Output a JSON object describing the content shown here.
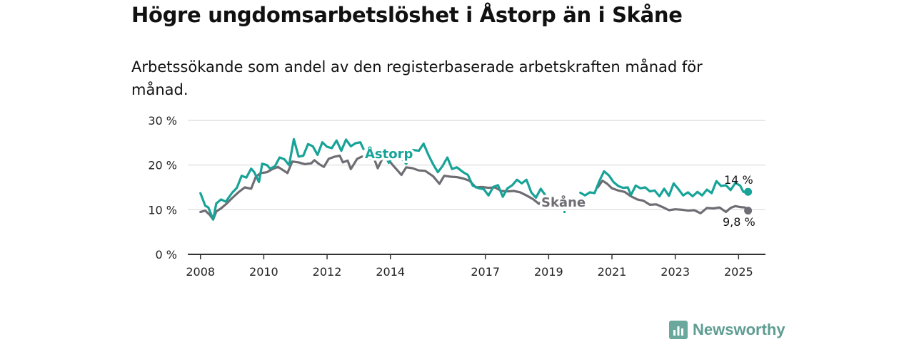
{
  "title": "Högre ungdomsarbetslöshet i Åstorp än i Skåne",
  "subtitle": "Arbetssökande som andel av den registerbaserade arbetskraften månad för månad.",
  "logo": "Newsworthy",
  "colors": {
    "astorp": "#17a398",
    "skane": "#6f6d73",
    "grid": "#d9d9d9",
    "axis": "#333333"
  },
  "chart_data": {
    "type": "line",
    "ylim": [
      0,
      30
    ],
    "yticks": [
      0,
      10,
      20,
      30
    ],
    "ytick_labels": [
      "0 %",
      "10 %",
      "20 %",
      "30 %"
    ],
    "xlim": [
      2007.6,
      2025.85
    ],
    "xticks": [
      2008,
      2010,
      2012,
      2014,
      2017,
      2019,
      2021,
      2023,
      2025
    ],
    "xtick_labels": [
      "2008",
      "2010",
      "2012",
      "2014",
      "2017",
      "2019",
      "2021",
      "2023",
      "2025"
    ],
    "grid": true,
    "series": [
      {
        "name": "Skåne",
        "color": "#6f6d73",
        "end_label": "9,8 %",
        "points": [
          [
            2008.0,
            9.5
          ],
          [
            2008.15,
            9.8
          ],
          [
            2008.3,
            8.8
          ],
          [
            2008.4,
            7.8
          ],
          [
            2008.5,
            9.6
          ],
          [
            2008.65,
            10.3
          ],
          [
            2008.8,
            11.2
          ],
          [
            2009.0,
            12.6
          ],
          [
            2009.2,
            13.9
          ],
          [
            2009.4,
            15.0
          ],
          [
            2009.6,
            14.7
          ],
          [
            2009.75,
            17.4
          ],
          [
            2009.9,
            18.2
          ],
          [
            2010.1,
            18.4
          ],
          [
            2010.3,
            19.2
          ],
          [
            2010.45,
            19.6
          ],
          [
            2010.6,
            18.9
          ],
          [
            2010.75,
            18.2
          ],
          [
            2010.9,
            20.8
          ],
          [
            2011.1,
            20.6
          ],
          [
            2011.3,
            20.2
          ],
          [
            2011.5,
            20.4
          ],
          [
            2011.6,
            21.1
          ],
          [
            2011.75,
            20.2
          ],
          [
            2011.9,
            19.6
          ],
          [
            2012.05,
            21.4
          ],
          [
            2012.25,
            21.9
          ],
          [
            2012.4,
            22.1
          ],
          [
            2012.5,
            20.6
          ],
          [
            2012.65,
            21.0
          ],
          [
            2012.75,
            19.1
          ],
          [
            2012.95,
            21.4
          ],
          [
            2013.1,
            21.9
          ],
          [
            2013.3,
            21.6
          ],
          [
            2013.5,
            21.2
          ],
          [
            2013.6,
            19.3
          ],
          [
            2013.75,
            21.5
          ],
          [
            2013.9,
            21.6
          ],
          [
            2014.05,
            20.2
          ],
          [
            2014.2,
            19.0
          ],
          [
            2014.35,
            17.8
          ],
          [
            2014.5,
            19.5
          ],
          [
            2014.7,
            19.3
          ],
          [
            2014.9,
            18.8
          ],
          [
            2015.1,
            18.7
          ],
          [
            2015.35,
            17.5
          ],
          [
            2015.55,
            15.8
          ],
          [
            2015.7,
            17.6
          ],
          [
            2015.9,
            17.4
          ],
          [
            2016.1,
            17.3
          ],
          [
            2016.3,
            17.0
          ],
          [
            2016.5,
            16.5
          ],
          [
            2016.7,
            15.0
          ],
          [
            2016.9,
            15.1
          ],
          [
            2017.1,
            14.9
          ],
          [
            2017.3,
            15.0
          ],
          [
            2017.5,
            14.2
          ],
          [
            2017.7,
            14.1
          ],
          [
            2017.9,
            14.2
          ],
          [
            2018.1,
            13.9
          ],
          [
            2018.3,
            13.2
          ],
          [
            2018.5,
            12.4
          ],
          [
            2018.7,
            11.3
          ],
          [
            2018.85,
            12.4
          ],
          [
            2019.0,
            12.7
          ]
        ],
        "points2": [
          [
            2020.55,
            15.0
          ],
          [
            2020.7,
            16.5
          ],
          [
            2020.85,
            15.8
          ],
          [
            2021.0,
            14.8
          ],
          [
            2021.2,
            14.3
          ],
          [
            2021.4,
            14.0
          ],
          [
            2021.6,
            13.0
          ],
          [
            2021.8,
            12.3
          ],
          [
            2022.0,
            12.0
          ],
          [
            2022.2,
            11.1
          ],
          [
            2022.4,
            11.2
          ],
          [
            2022.6,
            10.6
          ],
          [
            2022.8,
            9.9
          ],
          [
            2023.0,
            10.1
          ],
          [
            2023.2,
            10.0
          ],
          [
            2023.4,
            9.8
          ],
          [
            2023.6,
            9.9
          ],
          [
            2023.8,
            9.2
          ],
          [
            2024.0,
            10.4
          ],
          [
            2024.2,
            10.3
          ],
          [
            2024.4,
            10.5
          ],
          [
            2024.6,
            9.5
          ],
          [
            2024.75,
            10.4
          ],
          [
            2024.9,
            10.8
          ],
          [
            2025.05,
            10.6
          ],
          [
            2025.2,
            10.5
          ],
          [
            2025.3,
            9.8
          ]
        ]
      },
      {
        "name": "Åstorp",
        "color": "#17a398",
        "end_label": "14 %",
        "points": [
          [
            2008.0,
            13.7
          ],
          [
            2008.15,
            10.9
          ],
          [
            2008.25,
            10.5
          ],
          [
            2008.4,
            7.8
          ],
          [
            2008.5,
            11.4
          ],
          [
            2008.65,
            12.3
          ],
          [
            2008.8,
            11.8
          ],
          [
            2009.0,
            13.8
          ],
          [
            2009.15,
            14.9
          ],
          [
            2009.3,
            17.6
          ],
          [
            2009.45,
            17.2
          ],
          [
            2009.6,
            19.2
          ],
          [
            2009.7,
            18.4
          ],
          [
            2009.85,
            16.2
          ],
          [
            2009.95,
            20.3
          ],
          [
            2010.1,
            20.0
          ],
          [
            2010.2,
            19.2
          ],
          [
            2010.35,
            19.7
          ],
          [
            2010.5,
            21.7
          ],
          [
            2010.65,
            21.3
          ],
          [
            2010.8,
            20.0
          ],
          [
            2010.95,
            25.8
          ],
          [
            2011.1,
            21.9
          ],
          [
            2011.25,
            22.1
          ],
          [
            2011.4,
            24.7
          ],
          [
            2011.55,
            24.2
          ],
          [
            2011.7,
            22.3
          ],
          [
            2011.85,
            25.1
          ],
          [
            2012.0,
            24.1
          ],
          [
            2012.15,
            23.8
          ],
          [
            2012.3,
            25.5
          ],
          [
            2012.45,
            23.2
          ],
          [
            2012.6,
            25.7
          ],
          [
            2012.75,
            24.2
          ],
          [
            2012.9,
            24.9
          ],
          [
            2013.05,
            25.1
          ],
          [
            2013.15,
            23.6
          ]
        ],
        "points2": [
          [
            2013.8,
            22.6
          ],
          [
            2013.95,
            20.5
          ],
          [
            2014.1,
            22.0
          ],
          [
            2014.3,
            21.8
          ],
          [
            2014.5,
            20.3
          ],
          [
            2014.7,
            23.4
          ],
          [
            2014.9,
            23.2
          ],
          [
            2015.05,
            24.8
          ],
          [
            2015.2,
            22.3
          ],
          [
            2015.35,
            20.2
          ],
          [
            2015.5,
            18.4
          ],
          [
            2015.65,
            19.8
          ],
          [
            2015.8,
            21.7
          ],
          [
            2015.95,
            19.1
          ],
          [
            2016.1,
            19.5
          ],
          [
            2016.3,
            18.4
          ],
          [
            2016.45,
            17.8
          ],
          [
            2016.6,
            15.4
          ],
          [
            2016.8,
            14.8
          ],
          [
            2016.95,
            14.6
          ],
          [
            2017.1,
            13.2
          ],
          [
            2017.25,
            15.1
          ],
          [
            2017.4,
            15.5
          ],
          [
            2017.55,
            12.9
          ],
          [
            2017.7,
            14.8
          ],
          [
            2017.85,
            15.5
          ],
          [
            2018.0,
            16.7
          ],
          [
            2018.15,
            15.9
          ],
          [
            2018.3,
            16.7
          ],
          [
            2018.45,
            13.9
          ],
          [
            2018.6,
            12.7
          ],
          [
            2018.75,
            14.7
          ],
          [
            2018.9,
            13.2
          ]
        ],
        "points3": [
          [
            2020.0,
            13.8
          ],
          [
            2020.15,
            13.2
          ],
          [
            2020.3,
            13.9
          ],
          [
            2020.45,
            13.7
          ],
          [
            2020.6,
            16.4
          ],
          [
            2020.75,
            18.6
          ],
          [
            2020.9,
            17.7
          ],
          [
            2021.05,
            16.2
          ],
          [
            2021.2,
            15.3
          ],
          [
            2021.35,
            14.9
          ],
          [
            2021.5,
            15.0
          ],
          [
            2021.6,
            13.3
          ],
          [
            2021.75,
            15.4
          ],
          [
            2021.9,
            14.8
          ],
          [
            2022.05,
            15.0
          ],
          [
            2022.2,
            14.1
          ],
          [
            2022.35,
            14.3
          ],
          [
            2022.5,
            13.0
          ],
          [
            2022.65,
            14.7
          ],
          [
            2022.8,
            13.1
          ],
          [
            2022.95,
            15.9
          ],
          [
            2023.1,
            14.6
          ],
          [
            2023.25,
            13.2
          ],
          [
            2023.4,
            13.9
          ],
          [
            2023.55,
            13.0
          ],
          [
            2023.7,
            14.0
          ],
          [
            2023.85,
            13.2
          ],
          [
            2024.0,
            14.5
          ],
          [
            2024.15,
            13.7
          ],
          [
            2024.3,
            16.4
          ],
          [
            2024.45,
            15.3
          ],
          [
            2024.6,
            15.5
          ],
          [
            2024.75,
            14.4
          ],
          [
            2024.9,
            16.0
          ],
          [
            2025.05,
            15.4
          ],
          [
            2025.15,
            14.0
          ],
          [
            2025.3,
            14.0
          ]
        ]
      }
    ],
    "annotations": [
      {
        "text": "Åstorp",
        "series": "Åstorp"
      },
      {
        "text": "Skåne",
        "series": "Skåne"
      }
    ]
  }
}
